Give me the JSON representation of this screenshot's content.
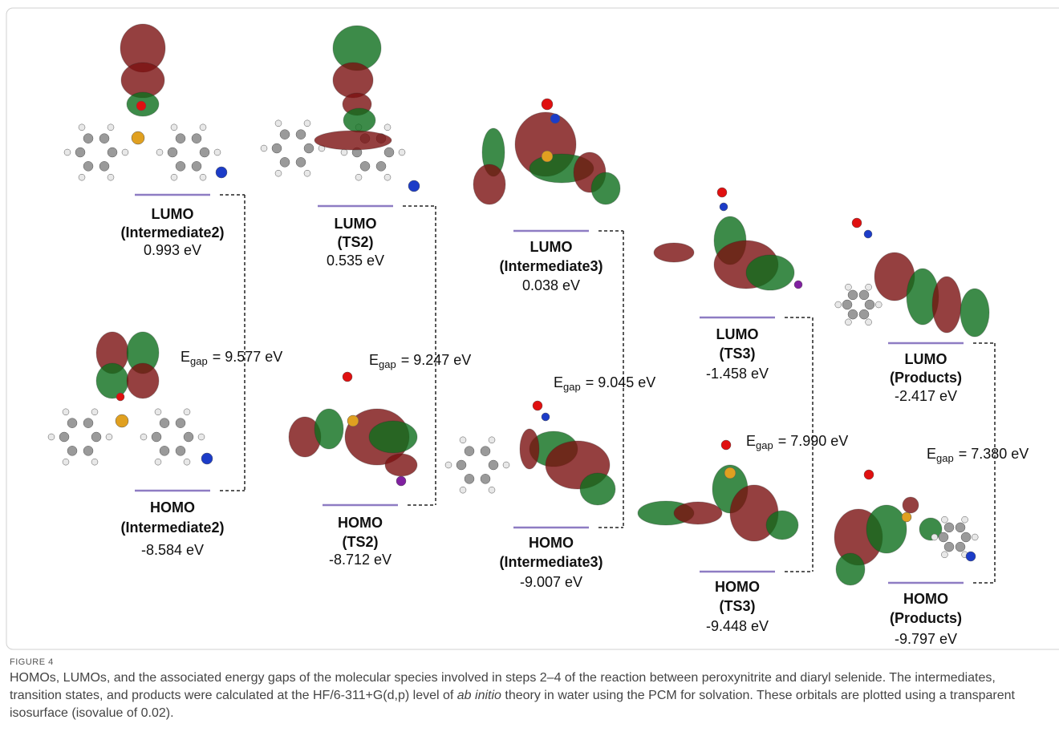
{
  "figure": {
    "species": [
      {
        "lumo": {
          "label": "LUMO",
          "species": "(Intermediate2)",
          "energy": "0.993 eV"
        },
        "homo": {
          "label": "HOMO",
          "species": "(Intermediate2)",
          "energy": "-8.584 eV"
        },
        "gap": {
          "symbol": "E",
          "subscript": "gap",
          "value": "= 9.577 eV"
        }
      },
      {
        "lumo": {
          "label": "LUMO",
          "species": "(TS2)",
          "energy": "0.535 eV"
        },
        "homo": {
          "label": "HOMO",
          "species": "(TS2)",
          "energy": "-8.712 eV"
        },
        "gap": {
          "symbol": "E",
          "subscript": "gap",
          "value": "= 9.247 eV"
        }
      },
      {
        "lumo": {
          "label": "LUMO",
          "species": "(Intermediate3)",
          "energy": "0.038 eV"
        },
        "homo": {
          "label": "HOMO",
          "species": "(Intermediate3)",
          "energy": "-9.007 eV"
        },
        "gap": {
          "symbol": "E",
          "subscript": "gap",
          "value": "= 9.045 eV"
        }
      },
      {
        "lumo": {
          "label": "LUMO",
          "species": "(TS3)",
          "energy": "-1.458 eV"
        },
        "homo": {
          "label": "HOMO",
          "species": "(TS3)",
          "energy": "-9.448 eV"
        },
        "gap": {
          "symbol": "E",
          "subscript": "gap",
          "value": "= 7.990 eV"
        }
      },
      {
        "lumo": {
          "label": "LUMO",
          "species": "(Products)",
          "energy": "-2.417 eV"
        },
        "homo": {
          "label": "HOMO",
          "species": "(Products)",
          "energy": "-9.797 eV"
        },
        "gap": {
          "symbol": "E",
          "subscript": "gap",
          "value": "= 7.380 eV"
        }
      }
    ]
  },
  "caption": {
    "label": "FIGURE 4",
    "text_before": "HOMOs, LUMOs, and the associated energy gaps of the molecular species involved in steps 2–4 of the reaction between peroxynitrite and diaryl selenide. The intermediates, transition states, and products were calculated at the HF/6-311+G(d,p) level of ",
    "italic": "ab initio",
    "text_after": " theory in water using the PCM for solvation. These orbitals are plotted using a transparent isosurface (isovalue of 0.02)."
  }
}
